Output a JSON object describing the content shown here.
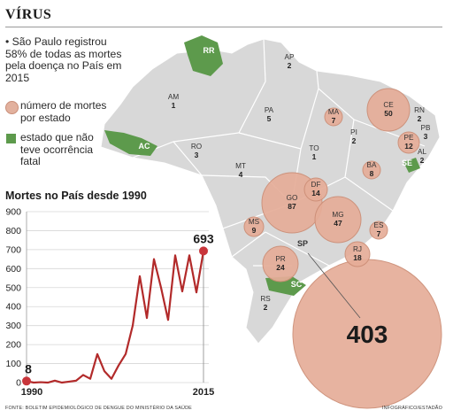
{
  "header": {
    "title": "VÍRUS"
  },
  "intro": {
    "text": "• São Paulo registrou 58% de todas as mortes pela doença no País em 2015"
  },
  "legend": {
    "deaths_label": "número de mortes por estado",
    "no_deaths_label": "estado que não teve ocorrência fatal"
  },
  "colors": {
    "land": "#d8d8d8",
    "border": "#ffffff",
    "bubble_fill": "#e6ad98",
    "bubble_stroke": "#cc8d75",
    "no_deaths_green": "#5d9a4c",
    "line": "#b22a2a",
    "marker": "#c8353b"
  },
  "states": [
    {
      "code": "RR",
      "deaths": null
    },
    {
      "code": "AP",
      "deaths": 2
    },
    {
      "code": "AM",
      "deaths": 1
    },
    {
      "code": "PA",
      "deaths": 5
    },
    {
      "code": "MA",
      "deaths": 7
    },
    {
      "code": "CE",
      "deaths": 50
    },
    {
      "code": "RN",
      "deaths": 2
    },
    {
      "code": "PB",
      "deaths": 3
    },
    {
      "code": "PI",
      "deaths": 2
    },
    {
      "code": "PE",
      "deaths": 12
    },
    {
      "code": "AL",
      "deaths": 2
    },
    {
      "code": "SE",
      "deaths": null
    },
    {
      "code": "AC",
      "deaths": null
    },
    {
      "code": "RO",
      "deaths": 3
    },
    {
      "code": "TO",
      "deaths": 1
    },
    {
      "code": "BA",
      "deaths": 8
    },
    {
      "code": "MT",
      "deaths": 4
    },
    {
      "code": "DF",
      "deaths": 14
    },
    {
      "code": "GO",
      "deaths": 87
    },
    {
      "code": "MG",
      "deaths": 47
    },
    {
      "code": "MS",
      "deaths": 9
    },
    {
      "code": "ES",
      "deaths": 7
    },
    {
      "code": "SP",
      "deaths": 403
    },
    {
      "code": "RJ",
      "deaths": 18
    },
    {
      "code": "PR",
      "deaths": 24
    },
    {
      "code": "SC",
      "deaths": null
    },
    {
      "code": "RS",
      "deaths": 2
    }
  ],
  "chart_data": {
    "type": "line",
    "title": "Mortes no País desde 1990",
    "x": [
      1990,
      1991,
      1992,
      1993,
      1994,
      1995,
      1996,
      1997,
      1998,
      1999,
      2000,
      2001,
      2002,
      2003,
      2004,
      2005,
      2006,
      2007,
      2008,
      2009,
      2010,
      2011,
      2012,
      2013,
      2014,
      2015
    ],
    "series": [
      {
        "values": [
          8,
          0,
          2,
          0,
          10,
          0,
          5,
          10,
          40,
          20,
          150,
          60,
          20,
          90,
          150,
          300,
          560,
          340,
          650,
          500,
          330,
          670,
          480,
          670,
          475,
          693
        ]
      }
    ],
    "yticks": [
      0,
      100,
      200,
      300,
      400,
      500,
      600,
      700,
      800,
      900
    ],
    "ylim": [
      0,
      900
    ],
    "xlim": [
      1990,
      2015
    ],
    "x_labels": [
      "1990",
      "2015"
    ],
    "annotations": [
      {
        "x": 1990,
        "y": 8,
        "label": "8"
      },
      {
        "x": 2015,
        "y": 693,
        "label": "693"
      }
    ]
  },
  "footer": {
    "source": "FONTE: BOLETIM EPIDEMIOLÓGICO DE DENGUE DO MINISTÉRIO DA SAÚDE",
    "credit": "INFOGRÁFICO/ESTADÃO"
  }
}
